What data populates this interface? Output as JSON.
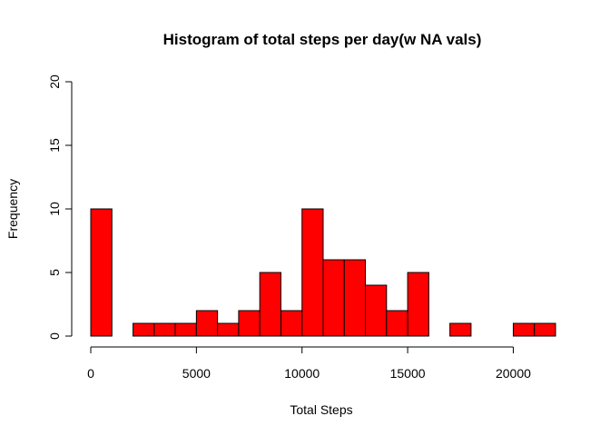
{
  "chart_data": {
    "type": "bar",
    "title": "Histogram of total steps per day(w NA vals)",
    "xlabel": "Total Steps",
    "ylabel": "Frequency",
    "bin_width": 1000,
    "bin_starts": [
      0,
      1000,
      2000,
      3000,
      4000,
      5000,
      6000,
      7000,
      8000,
      9000,
      10000,
      11000,
      12000,
      13000,
      14000,
      15000,
      16000,
      17000,
      18000,
      19000,
      20000,
      21000
    ],
    "values": [
      10,
      0,
      1,
      1,
      1,
      2,
      1,
      2,
      5,
      2,
      10,
      6,
      6,
      4,
      2,
      5,
      0,
      1,
      0,
      0,
      1,
      1
    ],
    "xlim": [
      0,
      22000
    ],
    "ylim": [
      0,
      20
    ],
    "xticks": [
      0,
      5000,
      10000,
      15000,
      20000
    ],
    "yticks": [
      0,
      5,
      10,
      15,
      20
    ],
    "bar_color": "#ff0000",
    "bar_border_color": "#000000",
    "grid": false,
    "legend": "none"
  }
}
